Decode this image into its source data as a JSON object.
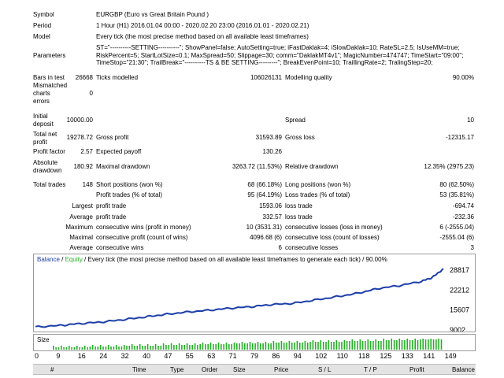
{
  "report": {
    "symbol_label": "Symbol",
    "symbol": "EURGBP (Euro vs Great Britain Pound )",
    "period_label": "Period",
    "period": "1 Hour (H1) 2016.01.04 00:00 - 2020.02.20 23:00 (2016.01.01 - 2020.02.21)",
    "model_label": "Model",
    "model": "Every tick (the most precise method based on all available least timeframes)",
    "parameters_label": "Parameters",
    "parameters": "ST=\"----------SETTING----------\"; ShowPanel=false; AutoSetting=true; iFastDaklak=4; iSlowDaklak=10; RateSL=2.5; IsUseMM=true; RiskPercent=5; StartLotSize=0.1; MaxSpread=50; Slippage=30; comm=\"DaklakMT4v1\"; MagicNumber=474747; TimeStart=\"09:00\"; TimeStop=\"21:30\"; TrailBreak=\"----------TS & BE SETTING---------\"; BreakEvenPoint=10; TraillingRate=2; TralingStep=20;",
    "bars_label": "Bars in test",
    "bars": "26668",
    "ticks_label": "Ticks modelled",
    "ticks": "106026131",
    "quality_label": "Modelling quality",
    "quality": "90.00%",
    "mismatch_label_1": "Mismatched",
    "mismatch_label_2": "charts",
    "mismatch_label_3": "errors",
    "mismatch": "0",
    "deposit_label_1": "Initial",
    "deposit_label_2": "deposit",
    "deposit": "10000.00",
    "spread_label": "Spread",
    "spread": "10",
    "netprofit_label_1": "Total net",
    "netprofit_label_2": "profit",
    "netprofit": "19278.72",
    "grossprofit_label": "Gross profit",
    "grossprofit": "31593.89",
    "grossloss_label": "Gross loss",
    "grossloss": "-12315.17",
    "pf_label": "Profit factor",
    "pf": "2.57",
    "payoff_label": "Expected payoff",
    "payoff": "130.26",
    "absdd_label_1": "Absolute",
    "absdd_label_2": "drawdown",
    "absdd": "180.92",
    "maxdd_label": "Maximal drawdown",
    "maxdd": "3263.72 (11.53%)",
    "reldd_label": "Relative drawdown",
    "reldd": "12.35% (2975.23)",
    "trades_label": "Total trades",
    "trades": "148",
    "short_label": "Short positions (won %)",
    "short": "68 (66.18%)",
    "long_label": "Long positions (won %)",
    "long": "80 (62.50%)",
    "profit_trades_label": "Profit trades (% of total)",
    "profit_trades": "95 (64.19%)",
    "loss_trades_label": "Loss trades (% of total)",
    "loss_trades": "53 (35.81%)",
    "largest_label": "Largest",
    "largest_profit_label": "profit trade",
    "largest_profit": "1593.06",
    "largest_loss_label": "loss trade",
    "largest_loss": "-694.74",
    "average_label": "Average",
    "average_profit_label": "profit trade",
    "average_profit": "332.57",
    "average_loss_label": "loss trade",
    "average_loss": "-232.36",
    "maximum_label": "Maximum",
    "max_wins_label": "consecutive wins (profit in money)",
    "max_wins": "10 (3531.31)",
    "max_losses_label": "consecutive losses (loss in money)",
    "max_losses": "6 (-2555.04)",
    "maximal_label": "Maximal",
    "maximal_profit_label": "consecutive profit (count of wins)",
    "maximal_profit": "4096.68 (6)",
    "maximal_loss_label": "consecutive loss (count of losses)",
    "maximal_loss": "-2555.04 (6)",
    "avg_cons_label": "Average",
    "avg_wins_label": "consecutive wins",
    "avg_wins": "6",
    "avg_losses_label": "consecutive losses",
    "avg_losses": "3"
  },
  "chart": {
    "legend_balance": "Balance",
    "legend_sep": " / ",
    "legend_equity": "Equity",
    "legend_rest": " / Every tick (the most precise method based on all available least timeframes to generate each tick) / 90.00%",
    "size_label": "Size",
    "balance_color": "#1c3fa8",
    "equity_color": "#22b022",
    "size_color": "#22b022"
  },
  "chart_data": {
    "type": "line",
    "x_ticks": [
      "0",
      "9",
      "16",
      "24",
      "32",
      "40",
      "47",
      "55",
      "63",
      "71",
      "79",
      "86",
      "94",
      "102",
      "110",
      "118",
      "125",
      "133",
      "141",
      "149"
    ],
    "y_ticks": [
      "28817",
      "22212",
      "15607",
      "9002"
    ],
    "ylim": [
      9002,
      28817
    ],
    "xlim": [
      0,
      149
    ],
    "series": [
      {
        "name": "Balance",
        "x": [
          0,
          9,
          16,
          24,
          32,
          40,
          47,
          55,
          63,
          71,
          79,
          86,
          94,
          102,
          110,
          118,
          125,
          133,
          141,
          145,
          149
        ],
        "values": [
          10000,
          10500,
          11100,
          11600,
          12400,
          13300,
          14100,
          14900,
          15500,
          16200,
          16700,
          17400,
          17800,
          18900,
          20000,
          21200,
          22700,
          23700,
          25100,
          26400,
          29278
        ]
      }
    ],
    "size_bars": 149
  },
  "table_header": {
    "num": "#",
    "time": "Time",
    "type": "Type",
    "order": "Order",
    "size": "Size",
    "price": "Price",
    "sl": "S / L",
    "tp": "T / P",
    "profit": "Profit",
    "balance": "Balance"
  }
}
